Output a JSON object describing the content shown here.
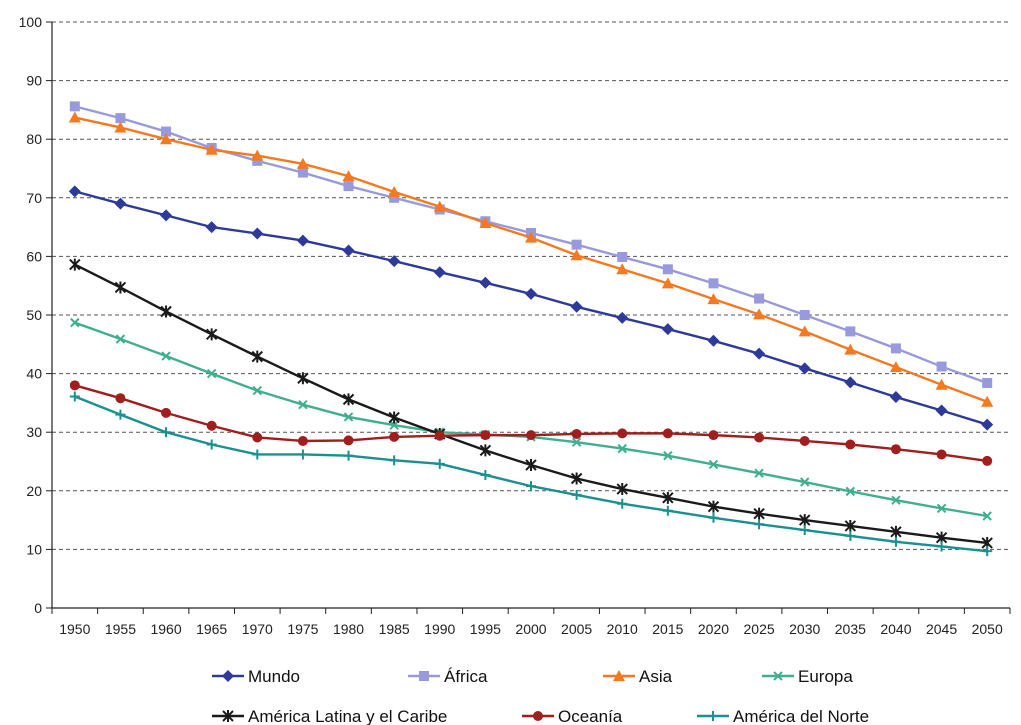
{
  "chart_data": {
    "type": "line",
    "title": "",
    "xlabel": "",
    "ylabel": "",
    "ylim": [
      0,
      100
    ],
    "yticks": [
      0,
      10,
      20,
      30,
      40,
      50,
      60,
      70,
      80,
      90,
      100
    ],
    "grid": "horizontal-dashed",
    "legend_position": "bottom",
    "categories": [
      "1950",
      "1955",
      "1960",
      "1965",
      "1970",
      "1975",
      "1980",
      "1985",
      "1990",
      "1995",
      "2000",
      "2005",
      "2010",
      "2015",
      "2020",
      "2025",
      "2030",
      "2035",
      "2040",
      "2045",
      "2050"
    ],
    "series": [
      {
        "name": "Mundo",
        "color": "#2E3A9A",
        "marker": "diamond",
        "values": [
          71.1,
          69.0,
          67.0,
          65.0,
          63.9,
          62.7,
          61.0,
          59.2,
          57.3,
          55.5,
          53.6,
          51.4,
          49.5,
          47.6,
          45.6,
          43.4,
          40.9,
          38.5,
          36.0,
          33.7,
          31.3
        ]
      },
      {
        "name": "África",
        "color": "#9999DD",
        "marker": "square",
        "values": [
          85.6,
          83.6,
          81.3,
          78.5,
          76.3,
          74.3,
          72.0,
          70.0,
          68.0,
          66.0,
          64.0,
          62.0,
          59.9,
          57.8,
          55.4,
          52.8,
          50.0,
          47.2,
          44.3,
          41.2,
          38.4
        ]
      },
      {
        "name": "Asia",
        "color": "#F47920",
        "marker": "triangle",
        "values": [
          83.7,
          82.0,
          80.0,
          78.2,
          77.2,
          75.8,
          73.7,
          71.0,
          68.5,
          65.7,
          63.2,
          60.2,
          57.8,
          55.4,
          52.7,
          50.1,
          47.2,
          44.1,
          41.1,
          38.1,
          35.2
        ]
      },
      {
        "name": "Europa",
        "color": "#3FAF8F",
        "marker": "x",
        "values": [
          48.7,
          45.9,
          43.0,
          40.0,
          37.1,
          34.7,
          32.6,
          31.2,
          30.0,
          29.6,
          29.2,
          28.3,
          27.2,
          26.0,
          24.5,
          23.0,
          21.5,
          19.9,
          18.4,
          17.0,
          15.7
        ]
      },
      {
        "name": "América Latina y el Caribe",
        "color": "#1A1A1A",
        "marker": "star",
        "values": [
          58.6,
          54.7,
          50.6,
          46.7,
          42.9,
          39.2,
          35.6,
          32.5,
          29.7,
          26.9,
          24.4,
          22.1,
          20.3,
          18.8,
          17.3,
          16.1,
          15.0,
          14.0,
          13.0,
          12.0,
          11.1
        ]
      },
      {
        "name": "Oceanía",
        "color": "#A01E1E",
        "marker": "circle",
        "values": [
          38.0,
          35.8,
          33.3,
          31.1,
          29.1,
          28.5,
          28.6,
          29.2,
          29.4,
          29.5,
          29.5,
          29.7,
          29.8,
          29.8,
          29.5,
          29.1,
          28.5,
          27.9,
          27.1,
          26.2,
          25.1
        ]
      },
      {
        "name": "América del Norte",
        "color": "#1A9090",
        "marker": "plus",
        "values": [
          36.1,
          33.0,
          30.0,
          27.9,
          26.2,
          26.2,
          26.0,
          25.2,
          24.6,
          22.7,
          20.8,
          19.3,
          17.8,
          16.6,
          15.4,
          14.3,
          13.3,
          12.3,
          11.3,
          10.5,
          9.7
        ]
      }
    ]
  }
}
